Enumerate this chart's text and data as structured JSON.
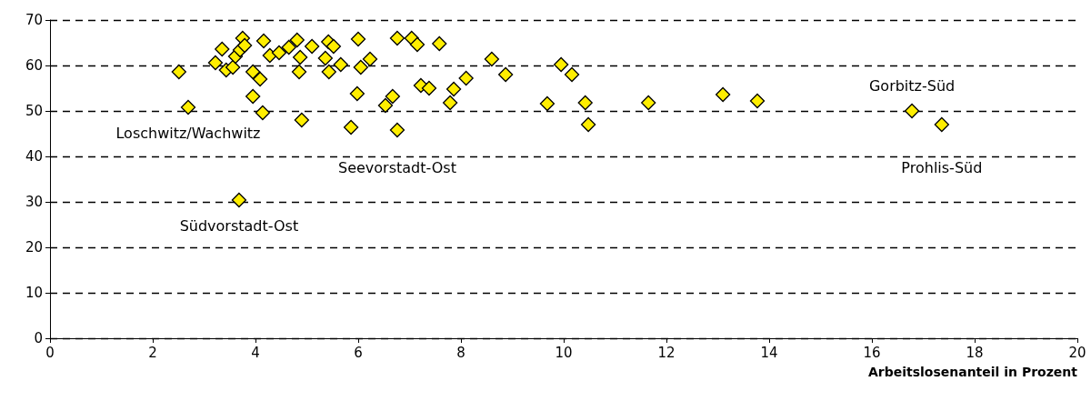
{
  "chart_data": {
    "type": "scatter",
    "xlabel": "Arbeitslosenanteil in Prozent",
    "x": [
      2.51,
      2.69,
      3.22,
      3.35,
      3.43,
      3.56,
      3.61,
      3.7,
      3.75,
      3.79,
      3.95,
      4.09,
      3.95,
      4.14,
      4.16,
      4.28,
      4.46,
      4.65,
      4.81,
      4.87,
      4.85,
      4.9,
      5.1,
      5.36,
      5.42,
      5.43,
      5.52,
      5.66,
      5.98,
      5.86,
      6.0,
      6.05,
      6.23,
      6.53,
      6.67,
      6.76,
      6.76,
      7.04,
      7.1,
      7.15,
      7.58,
      7.22,
      7.38,
      7.86,
      7.79,
      8.1,
      8.6,
      8.87,
      9.68,
      9.95,
      10.16,
      10.42,
      10.48,
      11.65,
      13.1,
      13.77,
      16.78,
      17.36,
      3.68
    ],
    "series": [
      {
        "color": "#ffee00",
        "values": [
          58.6,
          50.8,
          60.6,
          63.6,
          59,
          59.6,
          62,
          63.4,
          66,
          64.4,
          58.6,
          57,
          53.2,
          49.6,
          65.4,
          62.2,
          62.8,
          64,
          65.6,
          61.8,
          58.6,
          48,
          64.2,
          61.6,
          65.2,
          58.6,
          64.2,
          60.2,
          53.8,
          46.4,
          65.8,
          59.6,
          61.4,
          51.2,
          53.2,
          66,
          45.8,
          66,
          null,
          64.6,
          64.8,
          55.6,
          55,
          54.8,
          51.8,
          57.2,
          61.4,
          58,
          51.6,
          60.2,
          58,
          51.8,
          47,
          51.8,
          53.6,
          52.2,
          50,
          47,
          30.4
        ]
      }
    ],
    "xlim": [
      0,
      20
    ],
    "xticks": [
      0,
      2,
      4,
      6,
      8,
      10,
      12,
      14,
      16,
      18,
      20
    ],
    "ylim": [
      0,
      70
    ],
    "yticks": [
      0,
      10,
      20,
      30,
      40,
      50,
      60,
      70
    ],
    "grid": "y",
    "marker": "diamond",
    "annotations": [
      {
        "text": "Loschwitz/Wachwitz",
        "x": 2.69,
        "y": 50.8
      },
      {
        "text": "Seevorstadt-Ost",
        "x": 6.76,
        "y": 45.8
      },
      {
        "text": "Südvorstadt-Ost",
        "x": 3.68,
        "y": 30.4
      },
      {
        "text": "Gorbitz-Süd",
        "x": 16.78,
        "y": 50
      },
      {
        "text": "Prohlis-Süd",
        "x": 17.36,
        "y": 47
      }
    ]
  }
}
